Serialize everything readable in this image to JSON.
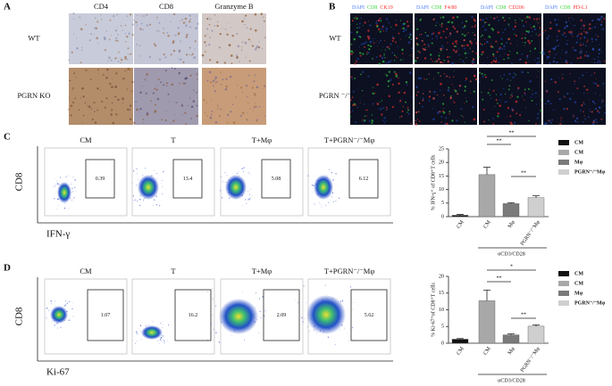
{
  "panels": {
    "a": {
      "label": "A",
      "columns": [
        "CD4",
        "CD8",
        "Granzyme  B"
      ],
      "rows": [
        "WT",
        "PGRN KO"
      ]
    },
    "b": {
      "label": "B",
      "columns": [
        [
          "DAPI",
          "CD8",
          "CK19"
        ],
        [
          "DAPI",
          "CD8",
          "F4/80"
        ],
        [
          "DAPI",
          "CD8",
          "CD206"
        ],
        [
          "DAPI",
          "CD8",
          "PD-L1"
        ]
      ],
      "rows": [
        "WT",
        "PGRN ⁻/⁻"
      ]
    },
    "c": {
      "label": "C",
      "columns": [
        "CM",
        "T",
        "T+Mφ",
        "T+PGRN⁻/⁻Mφ"
      ],
      "gate_values": [
        0.39,
        13.4,
        5.08,
        6.12
      ],
      "y_label": "CD8",
      "x_label": "IFN-γ"
    },
    "d": {
      "label": "D",
      "columns": [
        "CM",
        "T",
        "T+Mφ",
        "T+PGRN⁻/⁻Mφ"
      ],
      "gate_values": [
        1.07,
        16.2,
        2.09,
        5.62
      ],
      "y_label": "CD8",
      "x_label": "Ki-67"
    }
  },
  "chart_data": [
    {
      "type": "bar",
      "y_label": "% IFN-γ⁺ of CD8⁺T cells",
      "categories": [
        "CM",
        "CM",
        "Mφ",
        "PGRN⁻/⁻Mφ"
      ],
      "values": [
        0.5,
        15.5,
        4.8,
        7.0
      ],
      "errors": [
        0.3,
        2.7,
        0.3,
        0.7
      ],
      "colors": [
        "#111111",
        "#a8a8a8",
        "#7a7a7a",
        "#cfcfcf"
      ],
      "legend": [
        "CM",
        "CM",
        "Mφ",
        "PGRN⁻/⁻Mφ"
      ],
      "group_label": "αCD3/CD28",
      "annotations": [
        "**",
        "**",
        "**"
      ],
      "ylim": [
        0,
        25
      ],
      "yticks": [
        0,
        5,
        10,
        15,
        20,
        25
      ]
    },
    {
      "type": "bar",
      "y_label": "% Ki-67⁺of CD8⁺T cells",
      "categories": [
        "CM",
        "CM",
        "Mφ",
        "PGRN⁻/⁻Mφ"
      ],
      "values": [
        1.2,
        12.7,
        2.5,
        5.1
      ],
      "errors": [
        0.2,
        3.2,
        0.3,
        0.4
      ],
      "colors": [
        "#111111",
        "#a8a8a8",
        "#7a7a7a",
        "#cfcfcf"
      ],
      "legend": [
        "CM",
        "CM",
        "Mφ",
        "PGRN⁻/⁻Mφ"
      ],
      "group_label": "αCD3/CD28",
      "annotations": [
        "*",
        "**",
        "**"
      ],
      "ylim": [
        0,
        20
      ],
      "yticks": [
        0,
        5,
        10,
        15,
        20
      ]
    }
  ]
}
